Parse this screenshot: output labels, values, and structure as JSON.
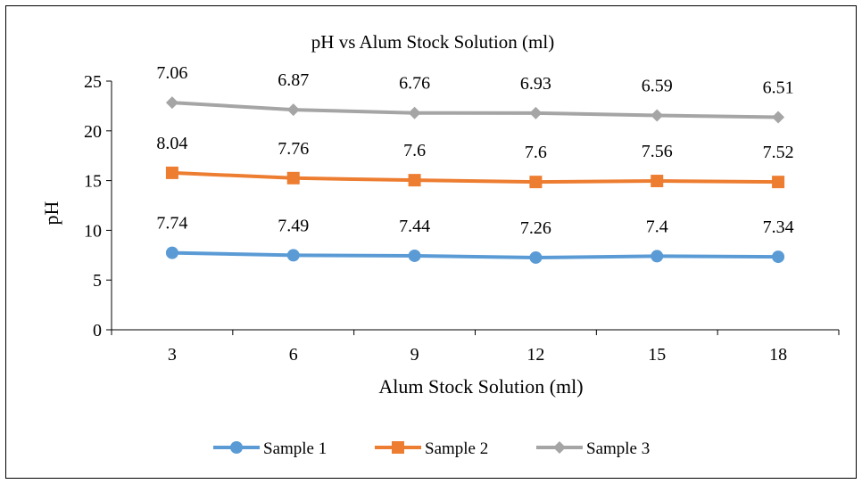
{
  "chart_data": {
    "type": "line",
    "title": "pH vs Alum Stock Solution (ml)",
    "xlabel": "Alum Stock Solution (ml)",
    "ylabel": "pH",
    "categories": [
      "3",
      "6",
      "9",
      "12",
      "15",
      "18"
    ],
    "ylim": [
      0,
      25
    ],
    "yticks": [
      0,
      5,
      10,
      15,
      20,
      25
    ],
    "grid": false,
    "legend_position": "bottom",
    "series": [
      {
        "name": "Sample 1",
        "color": "#5B9BD5",
        "marker": "circle",
        "values": [
          7.74,
          7.49,
          7.44,
          7.26,
          7.4,
          7.34
        ],
        "labels": [
          "7.74",
          "7.49",
          "7.44",
          "7.26",
          "7.4",
          "7.34"
        ]
      },
      {
        "name": "Sample 2",
        "color": "#ED7D31",
        "marker": "square",
        "values": [
          15.78,
          15.25,
          15.04,
          14.86,
          14.96,
          14.86
        ],
        "labels": [
          "8.04",
          "7.76",
          "7.6",
          "7.6",
          "7.56",
          "7.52"
        ]
      },
      {
        "name": "Sample 3",
        "color": "#A5A5A5",
        "marker": "diamond",
        "values": [
          22.84,
          22.12,
          21.8,
          21.79,
          21.55,
          21.37
        ],
        "labels": [
          "7.06",
          "6.87",
          "6.76",
          "6.93",
          "6.59",
          "6.51"
        ]
      }
    ]
  }
}
